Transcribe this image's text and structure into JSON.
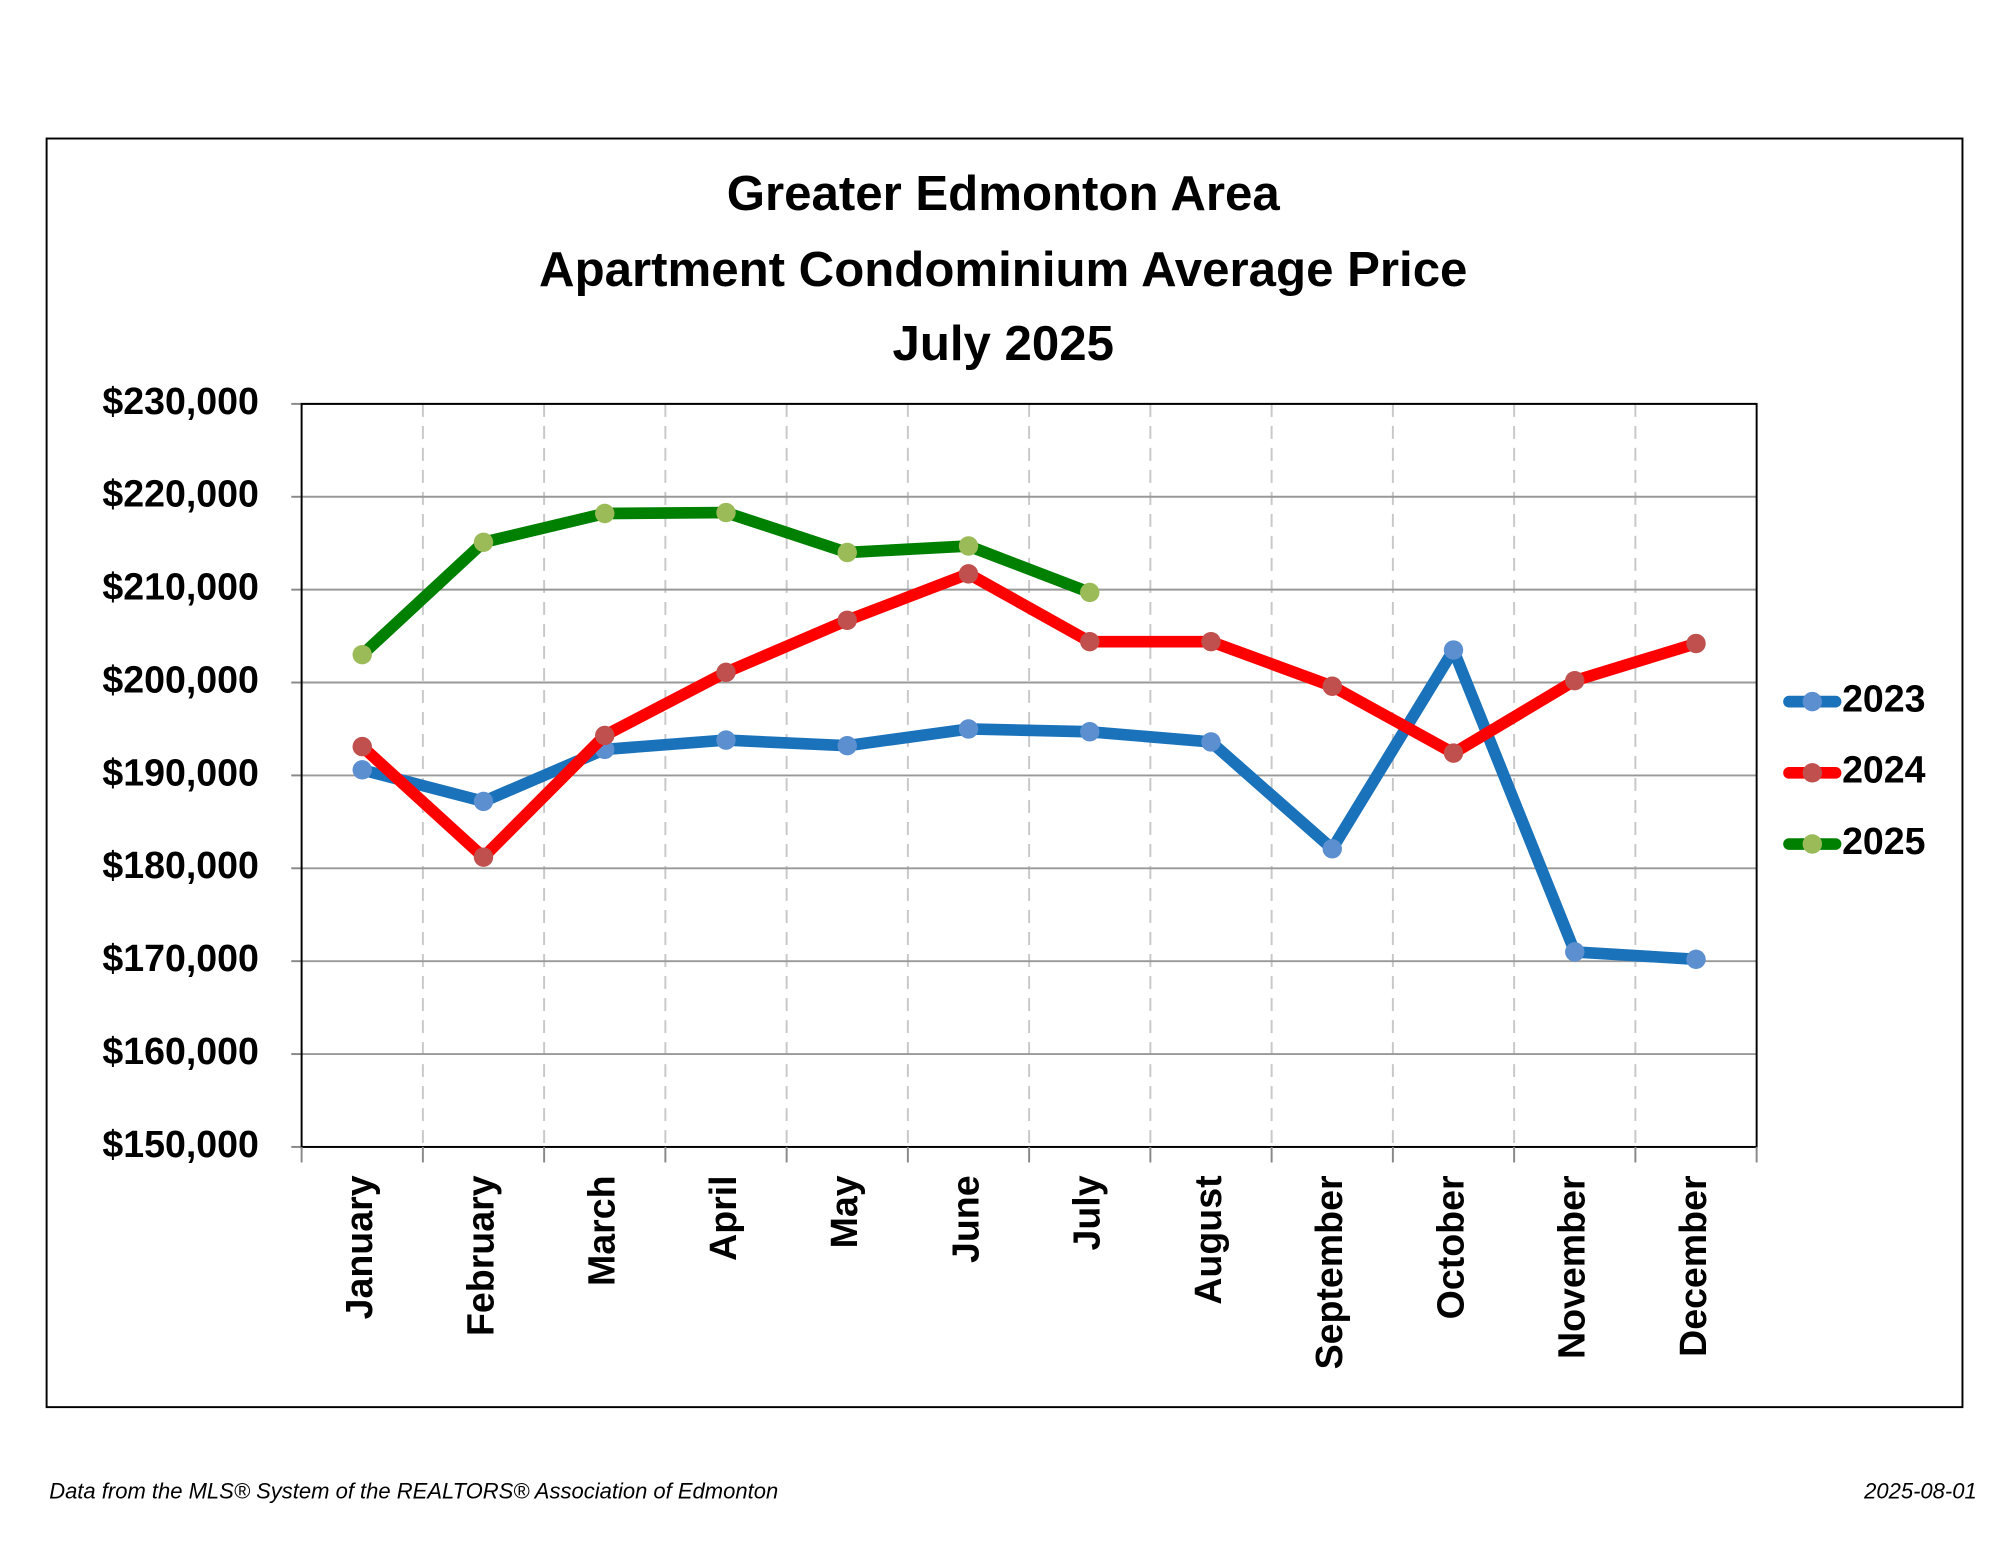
{
  "chart_data": {
    "type": "line",
    "title": [
      "Greater Edmonton Area",
      "Apartment Condominium Average Price",
      "July 2025"
    ],
    "categories": [
      "January",
      "February",
      "March",
      "April",
      "May",
      "June",
      "July",
      "August",
      "September",
      "October",
      "November",
      "December"
    ],
    "series": [
      {
        "name": "2023",
        "color": "#1a72bb",
        "marker_color": "#5b8fd0",
        "values": [
          190600,
          187200,
          192800,
          193800,
          193200,
          195000,
          194700,
          193600,
          182100,
          203500,
          171000,
          170200
        ]
      },
      {
        "name": "2024",
        "color": "#ff0000",
        "marker_color": "#c0504d",
        "values": [
          193100,
          181200,
          194300,
          201100,
          206700,
          211700,
          204400,
          204400,
          199600,
          192400,
          200200,
          204200
        ]
      },
      {
        "name": "2025",
        "color": "#008000",
        "marker_color": "#9bbb59",
        "values": [
          203000,
          215100,
          218200,
          218300,
          214000,
          214700,
          209700,
          null,
          null,
          null,
          null,
          null
        ]
      }
    ],
    "ylim": [
      150000,
      230000
    ],
    "yticks": [
      {
        "value": 150000,
        "label": "$150,000"
      },
      {
        "value": 160000,
        "label": "$160,000"
      },
      {
        "value": 170000,
        "label": "$170,000"
      },
      {
        "value": 180000,
        "label": "$180,000"
      },
      {
        "value": 190000,
        "label": "$190,000"
      },
      {
        "value": 200000,
        "label": "$200,000"
      },
      {
        "value": 210000,
        "label": "$210,000"
      },
      {
        "value": 220000,
        "label": "$220,000"
      },
      {
        "value": 230000,
        "label": "$230,000"
      }
    ],
    "grid": true,
    "legend": "right",
    "source": "Data from the MLS® System of the REALTORS® Association of Edmonton",
    "date": "2025-08-01"
  }
}
